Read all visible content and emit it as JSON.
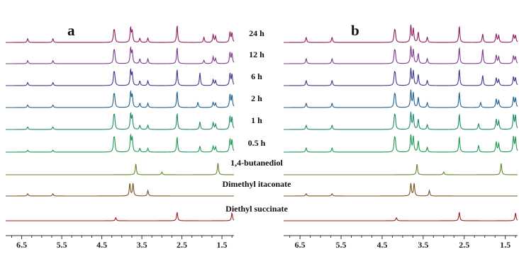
{
  "chart_data": {
    "type": "line",
    "title": "",
    "xlabel": "",
    "ylabel": "",
    "x_axis": {
      "reversed": true,
      "xlim": [
        6.9,
        1.2
      ],
      "ticks": [
        6.5,
        5.5,
        4.5,
        3.5,
        2.5,
        1.5
      ],
      "tick_labels": [
        "6.5",
        "5.5",
        "4.5",
        "3.5",
        "2.5",
        "1.5"
      ]
    },
    "grid": false,
    "legend": "none",
    "panels": [
      {
        "label": "a",
        "series": [
          {
            "name": "24 h",
            "color": "#8e1b5e",
            "peaks": [
              {
                "x": 6.35,
                "h": 0.22
              },
              {
                "x": 5.72,
                "h": 0.22
              },
              {
                "x": 4.2,
                "h": 0.55
              },
              {
                "x": 4.18,
                "h": 0.5
              },
              {
                "x": 3.78,
                "h": 0.85
              },
              {
                "x": 3.74,
                "h": 0.65
              },
              {
                "x": 3.55,
                "h": 0.25
              },
              {
                "x": 3.35,
                "h": 0.25
              },
              {
                "x": 2.62,
                "h": 1.0
              },
              {
                "x": 1.95,
                "h": 0.3
              },
              {
                "x": 1.72,
                "h": 0.45
              },
              {
                "x": 1.66,
                "h": 0.35
              },
              {
                "x": 1.3,
                "h": 0.6
              },
              {
                "x": 1.25,
                "h": 0.55
              }
            ]
          },
          {
            "name": "12 h",
            "color": "#7c3a8c",
            "peaks": [
              {
                "x": 6.35,
                "h": 0.18
              },
              {
                "x": 5.72,
                "h": 0.18
              },
              {
                "x": 4.2,
                "h": 0.6
              },
              {
                "x": 4.18,
                "h": 0.55
              },
              {
                "x": 3.78,
                "h": 0.9
              },
              {
                "x": 3.74,
                "h": 0.7
              },
              {
                "x": 3.55,
                "h": 0.28
              },
              {
                "x": 3.35,
                "h": 0.28
              },
              {
                "x": 2.62,
                "h": 0.95
              },
              {
                "x": 1.95,
                "h": 0.2
              },
              {
                "x": 1.72,
                "h": 0.4
              },
              {
                "x": 1.66,
                "h": 0.3
              },
              {
                "x": 1.3,
                "h": 0.65
              },
              {
                "x": 1.25,
                "h": 0.6
              }
            ]
          },
          {
            "name": "6 h",
            "color": "#3a3a8c",
            "peaks": [
              {
                "x": 6.35,
                "h": 0.18
              },
              {
                "x": 5.72,
                "h": 0.18
              },
              {
                "x": 4.2,
                "h": 0.6
              },
              {
                "x": 4.18,
                "h": 0.55
              },
              {
                "x": 3.78,
                "h": 0.9
              },
              {
                "x": 3.74,
                "h": 0.7
              },
              {
                "x": 3.55,
                "h": 0.28
              },
              {
                "x": 3.35,
                "h": 0.28
              },
              {
                "x": 2.62,
                "h": 0.95
              },
              {
                "x": 2.05,
                "h": 0.75
              },
              {
                "x": 1.72,
                "h": 0.35
              },
              {
                "x": 1.66,
                "h": 0.28
              },
              {
                "x": 1.3,
                "h": 0.7
              },
              {
                "x": 1.25,
                "h": 0.65
              }
            ]
          },
          {
            "name": "2 h",
            "color": "#21608c",
            "peaks": [
              {
                "x": 6.35,
                "h": 0.15
              },
              {
                "x": 5.72,
                "h": 0.15
              },
              {
                "x": 4.2,
                "h": 0.6
              },
              {
                "x": 4.18,
                "h": 0.55
              },
              {
                "x": 3.78,
                "h": 0.9
              },
              {
                "x": 3.74,
                "h": 0.7
              },
              {
                "x": 3.55,
                "h": 0.25
              },
              {
                "x": 3.35,
                "h": 0.25
              },
              {
                "x": 2.62,
                "h": 0.95
              },
              {
                "x": 2.1,
                "h": 0.3
              },
              {
                "x": 1.72,
                "h": 0.3
              },
              {
                "x": 1.66,
                "h": 0.25
              },
              {
                "x": 1.3,
                "h": 0.75
              },
              {
                "x": 1.25,
                "h": 0.7
              }
            ]
          },
          {
            "name": "1 h",
            "color": "#1f8a6e",
            "peaks": [
              {
                "x": 6.35,
                "h": 0.15
              },
              {
                "x": 5.72,
                "h": 0.15
              },
              {
                "x": 4.2,
                "h": 0.65
              },
              {
                "x": 4.18,
                "h": 0.6
              },
              {
                "x": 3.78,
                "h": 0.9
              },
              {
                "x": 3.74,
                "h": 0.75
              },
              {
                "x": 3.55,
                "h": 0.25
              },
              {
                "x": 3.35,
                "h": 0.25
              },
              {
                "x": 2.62,
                "h": 0.95
              },
              {
                "x": 2.05,
                "h": 0.45
              },
              {
                "x": 1.72,
                "h": 0.4
              },
              {
                "x": 1.66,
                "h": 0.3
              },
              {
                "x": 1.3,
                "h": 0.75
              },
              {
                "x": 1.25,
                "h": 0.7
              }
            ]
          },
          {
            "name": "0.5 h",
            "color": "#1e9a52",
            "peaks": [
              {
                "x": 6.35,
                "h": 0.12
              },
              {
                "x": 5.72,
                "h": 0.12
              },
              {
                "x": 4.2,
                "h": 0.65
              },
              {
                "x": 4.18,
                "h": 0.6
              },
              {
                "x": 3.78,
                "h": 0.95
              },
              {
                "x": 3.74,
                "h": 0.8
              },
              {
                "x": 3.55,
                "h": 0.22
              },
              {
                "x": 3.35,
                "h": 0.22
              },
              {
                "x": 2.62,
                "h": 0.9
              },
              {
                "x": 2.05,
                "h": 0.35
              },
              {
                "x": 1.72,
                "h": 0.35
              },
              {
                "x": 1.66,
                "h": 0.3
              },
              {
                "x": 1.3,
                "h": 0.75
              },
              {
                "x": 1.25,
                "h": 0.7
              }
            ]
          },
          {
            "name": "1,4-butanediol",
            "color": "#5e8a2a",
            "peaks": [
              {
                "x": 3.65,
                "h": 0.7
              },
              {
                "x": 3.0,
                "h": 0.18
              },
              {
                "x": 1.6,
                "h": 0.75
              }
            ]
          },
          {
            "name": "Dimethyl itaconate",
            "color": "#7a5420",
            "peaks": [
              {
                "x": 6.35,
                "h": 0.15
              },
              {
                "x": 5.72,
                "h": 0.15
              },
              {
                "x": 3.8,
                "h": 0.8
              },
              {
                "x": 3.72,
                "h": 0.8
              },
              {
                "x": 3.35,
                "h": 0.35
              }
            ]
          },
          {
            "name": "Diethyl succinate",
            "color": "#9c1f1f",
            "peaks": [
              {
                "x": 4.15,
                "h": 0.2
              },
              {
                "x": 2.62,
                "h": 0.55
              },
              {
                "x": 1.25,
                "h": 0.5
              }
            ]
          }
        ]
      },
      {
        "label": "b",
        "series": [
          {
            "name": "24 h",
            "color": "#8e1b5e",
            "peaks": [
              {
                "x": 6.35,
                "h": 0.3
              },
              {
                "x": 5.72,
                "h": 0.3
              },
              {
                "x": 4.2,
                "h": 0.55
              },
              {
                "x": 4.18,
                "h": 0.5
              },
              {
                "x": 3.8,
                "h": 1.0
              },
              {
                "x": 3.74,
                "h": 0.8
              },
              {
                "x": 3.62,
                "h": 0.6
              },
              {
                "x": 3.4,
                "h": 0.3
              },
              {
                "x": 2.62,
                "h": 0.95
              },
              {
                "x": 2.05,
                "h": 0.5
              },
              {
                "x": 1.72,
                "h": 0.5
              },
              {
                "x": 1.66,
                "h": 0.4
              },
              {
                "x": 1.3,
                "h": 0.45
              },
              {
                "x": 1.25,
                "h": 0.4
              }
            ]
          },
          {
            "name": "12 h",
            "color": "#7c3a8c",
            "peaks": [
              {
                "x": 6.35,
                "h": 0.3
              },
              {
                "x": 5.72,
                "h": 0.3
              },
              {
                "x": 4.2,
                "h": 0.6
              },
              {
                "x": 4.18,
                "h": 0.55
              },
              {
                "x": 3.8,
                "h": 1.0
              },
              {
                "x": 3.74,
                "h": 0.8
              },
              {
                "x": 3.62,
                "h": 0.6
              },
              {
                "x": 3.4,
                "h": 0.3
              },
              {
                "x": 2.62,
                "h": 0.95
              },
              {
                "x": 2.05,
                "h": 0.85
              },
              {
                "x": 1.72,
                "h": 0.5
              },
              {
                "x": 1.66,
                "h": 0.4
              },
              {
                "x": 1.3,
                "h": 0.45
              },
              {
                "x": 1.25,
                "h": 0.4
              }
            ]
          },
          {
            "name": "6 h",
            "color": "#3a3a8c",
            "peaks": [
              {
                "x": 6.35,
                "h": 0.3
              },
              {
                "x": 5.72,
                "h": 0.3
              },
              {
                "x": 4.2,
                "h": 0.6
              },
              {
                "x": 4.18,
                "h": 0.55
              },
              {
                "x": 3.8,
                "h": 1.0
              },
              {
                "x": 3.74,
                "h": 0.85
              },
              {
                "x": 3.62,
                "h": 0.65
              },
              {
                "x": 3.4,
                "h": 0.3
              },
              {
                "x": 2.62,
                "h": 0.95
              },
              {
                "x": 2.05,
                "h": 0.6
              },
              {
                "x": 1.72,
                "h": 0.45
              },
              {
                "x": 1.66,
                "h": 0.35
              },
              {
                "x": 1.3,
                "h": 0.5
              },
              {
                "x": 1.25,
                "h": 0.45
              }
            ]
          },
          {
            "name": "2 h",
            "color": "#21608c",
            "peaks": [
              {
                "x": 6.35,
                "h": 0.25
              },
              {
                "x": 5.72,
                "h": 0.25
              },
              {
                "x": 4.2,
                "h": 0.6
              },
              {
                "x": 4.18,
                "h": 0.55
              },
              {
                "x": 3.8,
                "h": 1.0
              },
              {
                "x": 3.74,
                "h": 0.85
              },
              {
                "x": 3.62,
                "h": 0.6
              },
              {
                "x": 3.4,
                "h": 0.28
              },
              {
                "x": 2.62,
                "h": 0.9
              },
              {
                "x": 2.1,
                "h": 0.3
              },
              {
                "x": 1.72,
                "h": 0.5
              },
              {
                "x": 1.66,
                "h": 0.4
              },
              {
                "x": 1.3,
                "h": 0.6
              },
              {
                "x": 1.25,
                "h": 0.55
              }
            ]
          },
          {
            "name": "1 h",
            "color": "#1f8a6e",
            "peaks": [
              {
                "x": 6.35,
                "h": 0.25
              },
              {
                "x": 5.72,
                "h": 0.25
              },
              {
                "x": 4.2,
                "h": 0.65
              },
              {
                "x": 4.18,
                "h": 0.6
              },
              {
                "x": 3.8,
                "h": 1.0
              },
              {
                "x": 3.74,
                "h": 0.85
              },
              {
                "x": 3.62,
                "h": 0.6
              },
              {
                "x": 3.4,
                "h": 0.28
              },
              {
                "x": 2.62,
                "h": 0.9
              },
              {
                "x": 2.15,
                "h": 0.35
              },
              {
                "x": 1.72,
                "h": 0.6
              },
              {
                "x": 1.66,
                "h": 0.5
              },
              {
                "x": 1.3,
                "h": 0.85
              },
              {
                "x": 1.25,
                "h": 0.8
              }
            ]
          },
          {
            "name": "0.5 h",
            "color": "#1e9a52",
            "peaks": [
              {
                "x": 6.35,
                "h": 0.25
              },
              {
                "x": 5.72,
                "h": 0.25
              },
              {
                "x": 4.2,
                "h": 0.65
              },
              {
                "x": 4.18,
                "h": 0.6
              },
              {
                "x": 3.8,
                "h": 1.0
              },
              {
                "x": 3.74,
                "h": 0.9
              },
              {
                "x": 3.62,
                "h": 0.65
              },
              {
                "x": 3.4,
                "h": 0.28
              },
              {
                "x": 2.62,
                "h": 0.9
              },
              {
                "x": 2.15,
                "h": 0.4
              },
              {
                "x": 1.72,
                "h": 0.6
              },
              {
                "x": 1.66,
                "h": 0.5
              },
              {
                "x": 1.3,
                "h": 0.9
              },
              {
                "x": 1.25,
                "h": 0.85
              }
            ]
          },
          {
            "name": "1,4-butanediol",
            "color": "#5e8a2a",
            "peaks": [
              {
                "x": 3.65,
                "h": 0.7
              },
              {
                "x": 3.0,
                "h": 0.18
              },
              {
                "x": 1.6,
                "h": 0.75
              }
            ]
          },
          {
            "name": "Dimethyl itaconate",
            "color": "#7a5420",
            "peaks": [
              {
                "x": 6.35,
                "h": 0.15
              },
              {
                "x": 5.72,
                "h": 0.15
              },
              {
                "x": 3.8,
                "h": 0.8
              },
              {
                "x": 3.72,
                "h": 0.8
              },
              {
                "x": 3.35,
                "h": 0.35
              }
            ]
          },
          {
            "name": "Diethyl succinate",
            "color": "#9c1f1f",
            "peaks": [
              {
                "x": 4.15,
                "h": 0.2
              },
              {
                "x": 2.62,
                "h": 0.55
              },
              {
                "x": 1.25,
                "h": 0.5
              }
            ]
          }
        ]
      }
    ]
  }
}
